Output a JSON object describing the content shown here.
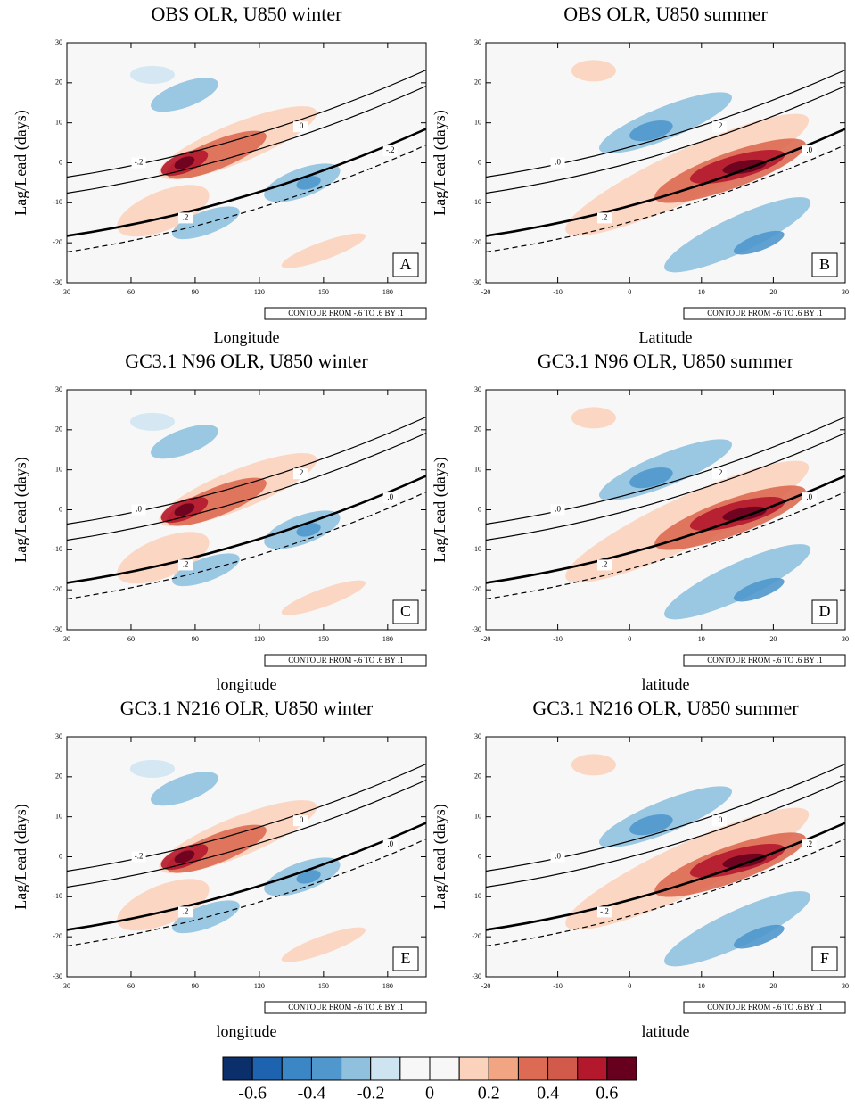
{
  "chart_data": [
    {
      "type": "contour",
      "title": "OBS OLR, U850 winter",
      "x_label": "Longitude",
      "y_label": "Lag/Lead (days)",
      "xlim": [
        30,
        198
      ],
      "xticks": [
        30,
        60,
        90,
        120,
        150,
        180
      ],
      "ylim": [
        -30,
        30
      ],
      "yticks": [
        30,
        20,
        10,
        0,
        -10,
        -20,
        -30
      ],
      "panel_label": "A",
      "contour_note": "CONTOUR FROM -.6 TO .6 BY .1",
      "contour_labels": [
        "-.2",
        ".0",
        ".2",
        "-.2"
      ]
    },
    {
      "type": "contour",
      "title": "OBS OLR, U850 summer",
      "x_label": "Latitude",
      "y_label": "Lag/Lead (days)",
      "xlim": [
        -20,
        30
      ],
      "xticks": [
        -20,
        -10,
        0,
        10,
        20,
        30
      ],
      "ylim": [
        -30,
        30
      ],
      "yticks": [
        30,
        20,
        10,
        0,
        -10,
        -20,
        -30
      ],
      "panel_label": "B",
      "contour_note": "CONTOUR FROM -.6 TO .6 BY .1",
      "contour_labels": [
        ".0",
        ".2",
        ".2",
        ".0"
      ]
    },
    {
      "type": "contour",
      "title": "GC3.1 N96 OLR, U850 winter",
      "x_label": "longitude",
      "y_label": "Lag/Lead (days)",
      "xlim": [
        30,
        198
      ],
      "xticks": [
        30,
        60,
        90,
        120,
        150,
        180
      ],
      "ylim": [
        -30,
        30
      ],
      "yticks": [
        30,
        20,
        10,
        0,
        -10,
        -20,
        -30
      ],
      "panel_label": "C",
      "contour_note": "CONTOUR FROM -.6 TO .6 BY .1",
      "contour_labels": [
        ".0",
        ".2",
        ".2",
        ".0"
      ]
    },
    {
      "type": "contour",
      "title": "GC3.1 N96 OLR, U850 summer",
      "x_label": "latitude",
      "y_label": "Lag/Lead (days)",
      "xlim": [
        -20,
        30
      ],
      "xticks": [
        -20,
        -10,
        0,
        10,
        20,
        30
      ],
      "ylim": [
        -30,
        30
      ],
      "yticks": [
        30,
        20,
        10,
        0,
        -10,
        -20,
        -30
      ],
      "panel_label": "D",
      "contour_note": "CONTOUR FROM -.6 TO .6 BY .1",
      "contour_labels": [
        ".0",
        ".2",
        ".2",
        ".0"
      ]
    },
    {
      "type": "contour",
      "title": "GC3.1 N216 OLR, U850 winter",
      "x_label": "longitude",
      "y_label": "Lag/Lead (days)",
      "xlim": [
        30,
        198
      ],
      "xticks": [
        30,
        60,
        90,
        120,
        150,
        180
      ],
      "ylim": [
        -30,
        30
      ],
      "yticks": [
        30,
        20,
        10,
        0,
        -10,
        -20,
        -30
      ],
      "panel_label": "E",
      "contour_note": "CONTOUR FROM -.6 TO .6 BY .1",
      "contour_labels": [
        "-.2",
        ".0",
        ".2",
        ".0"
      ]
    },
    {
      "type": "contour",
      "title": "GC3.1 N216 OLR, U850 summer",
      "x_label": "latitude",
      "y_label": "Lag/Lead (days)",
      "xlim": [
        -20,
        30
      ],
      "xticks": [
        -20,
        -10,
        0,
        10,
        20,
        30
      ],
      "ylim": [
        -30,
        30
      ],
      "yticks": [
        30,
        20,
        10,
        0,
        -10,
        -20,
        -30
      ],
      "panel_label": "F",
      "contour_note": "CONTOUR FROM -.6 TO .6 BY .1",
      "contour_labels": [
        ".0",
        ".0",
        "-.2",
        ".2"
      ]
    }
  ],
  "colorbar": {
    "levels": [
      -0.6,
      -0.5,
      -0.4,
      -0.3,
      -0.2,
      -0.1,
      0,
      0.1,
      0.2,
      0.3,
      0.4,
      0.5,
      0.6
    ],
    "ticks": [
      -0.6,
      -0.4,
      -0.2,
      0,
      0.2,
      0.4,
      0.6
    ],
    "colors": [
      "#0b2f6a",
      "#1e63b0",
      "#3b86c4",
      "#4f97cd",
      "#8fc1df",
      "#cfe4f1",
      "#f7f7f7",
      "#f7f7f7",
      "#fbd2bc",
      "#f2a583",
      "#dd6a53",
      "#d25a4a",
      "#b4182c",
      "#67001f"
    ]
  }
}
